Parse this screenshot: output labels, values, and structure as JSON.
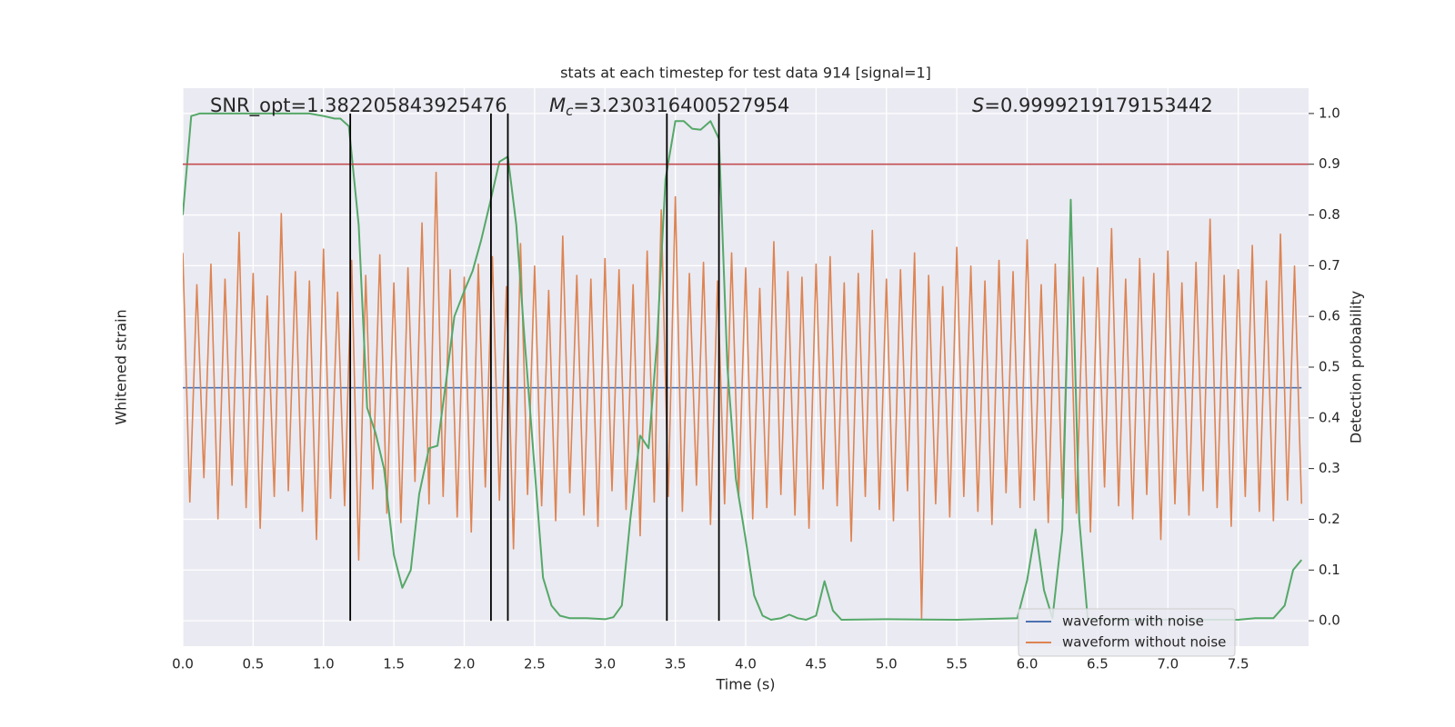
{
  "chart_data": {
    "type": "line",
    "title": "stats at each timestep for test data 914 [signal=1]",
    "xlabel": "Time (s)",
    "ylabel": "Whitened strain",
    "y2label": "Detection probability",
    "xlim": [
      0,
      8
    ],
    "xticks": [
      {
        "value": 0,
        "label": "0.0"
      },
      0.5,
      {
        "value": 1,
        "label": "1.0"
      },
      1.5,
      {
        "value": 2,
        "label": "2.0"
      },
      2.5,
      {
        "value": 3,
        "label": "3.0"
      },
      3.5,
      {
        "value": 4,
        "label": "4.0"
      },
      4.5,
      {
        "value": 5,
        "label": "5.0"
      },
      5.5,
      {
        "value": 6,
        "label": "6.0"
      },
      6.5,
      {
        "value": 7,
        "label": "7.0"
      },
      7.5
    ],
    "ylim": [
      -1.38,
      1.6
    ],
    "y2lim": [
      -0.05,
      1.05
    ],
    "y2ticks": [
      {
        "value": 0,
        "label": "0.0"
      },
      0.1,
      0.2,
      0.3,
      0.4,
      0.5,
      0.6,
      0.7,
      0.8,
      0.9,
      {
        "value": 1,
        "label": "1.0"
      }
    ],
    "grid": true,
    "legend": "lower right",
    "series": [
      {
        "name": "waveform with noise",
        "color": "#4c72b0",
        "x": [
          0,
          7.95
        ],
        "values": [
          0,
          0
        ]
      },
      {
        "name": "waveform without noise",
        "color": "#dd8452",
        "x": [
          0,
          0.05,
          0.1,
          0.15,
          0.2,
          0.25,
          0.3,
          0.35,
          0.4,
          0.45,
          0.5,
          0.55,
          0.6,
          0.65,
          0.7,
          0.75,
          0.8,
          0.85,
          0.9,
          0.95,
          1,
          1.05,
          1.1,
          1.15,
          1.2,
          1.25,
          1.3,
          1.35,
          1.4,
          1.45,
          1.5,
          1.55,
          1.6,
          1.65,
          1.7,
          1.75,
          1.8,
          1.85,
          1.9,
          1.95,
          2,
          2.05,
          2.1,
          2.15,
          2.2,
          2.25,
          2.3,
          2.35,
          2.4,
          2.45,
          2.5,
          2.55,
          2.6,
          2.65,
          2.7,
          2.75,
          2.8,
          2.85,
          2.9,
          2.95,
          3,
          3.05,
          3.1,
          3.15,
          3.2,
          3.25,
          3.3,
          3.35,
          3.4,
          3.45,
          3.5,
          3.55,
          3.6,
          3.65,
          3.7,
          3.75,
          3.8,
          3.85,
          3.9,
          3.95,
          4,
          4.05,
          4.1,
          4.15,
          4.2,
          4.25,
          4.3,
          4.35,
          4.4,
          4.45,
          4.5,
          4.55,
          4.6,
          4.65,
          4.7,
          4.75,
          4.8,
          4.85,
          4.9,
          4.95,
          5,
          5.05,
          5.1,
          5.15,
          5.2,
          5.25,
          5.3,
          5.35,
          5.4,
          5.45,
          5.5,
          5.55,
          5.6,
          5.65,
          5.7,
          5.75,
          5.8,
          5.85,
          5.9,
          5.95,
          6,
          6.05,
          6.1,
          6.15,
          6.2,
          6.25,
          6.3,
          6.35,
          6.4,
          6.45,
          6.5,
          6.55,
          6.6,
          6.65,
          6.7,
          6.75,
          6.8,
          6.85,
          6.9,
          6.95,
          7,
          7.05,
          7.1,
          7.15,
          7.2,
          7.25,
          7.3,
          7.35,
          7.4,
          7.45,
          7.5,
          7.55,
          7.6,
          7.65,
          7.7,
          7.75,
          7.8,
          7.85,
          7.9,
          7.95
        ],
        "values": [
          0.72,
          -0.61,
          0.55,
          -0.48,
          0.66,
          -0.7,
          0.58,
          -0.52,
          0.83,
          -0.64,
          0.61,
          -0.75,
          0.49,
          -0.58,
          0.93,
          -0.55,
          0.62,
          -0.66,
          0.57,
          -0.81,
          0.74,
          -0.59,
          0.51,
          -0.63,
          0.68,
          -0.92,
          0.6,
          -0.54,
          0.71,
          -0.67,
          0.56,
          -0.72,
          0.64,
          -0.5,
          0.88,
          -0.62,
          1.15,
          -0.58,
          0.63,
          -0.69,
          0.59,
          -0.77,
          0.66,
          -0.53,
          0.7,
          -0.6,
          0.54,
          -0.86,
          0.77,
          -0.57,
          0.65,
          -0.63,
          0.52,
          -0.71,
          0.81,
          -0.56,
          0.6,
          -0.68,
          0.58,
          -0.74,
          0.69,
          -0.55,
          0.63,
          -0.65,
          0.55,
          -0.79,
          0.73,
          -0.61,
          0.95,
          -0.58,
          1.02,
          -0.66,
          0.61,
          -0.52,
          0.67,
          -0.73,
          0.57,
          -0.62,
          0.72,
          -0.59,
          0.64,
          -0.7,
          0.53,
          -0.64,
          0.78,
          -0.57,
          0.62,
          -0.68,
          0.59,
          -0.75,
          0.66,
          -0.54,
          0.7,
          -0.63,
          0.56,
          -0.82,
          0.61,
          -0.58,
          0.84,
          -0.65,
          0.58,
          -0.71,
          0.63,
          -0.55,
          0.72,
          -1.23,
          0.6,
          -0.62,
          0.54,
          -0.69,
          0.75,
          -0.58,
          0.65,
          -0.66,
          0.57,
          -0.73,
          0.68,
          -0.56,
          0.62,
          -0.64,
          0.79,
          -0.6,
          0.55,
          -0.72,
          0.66,
          -0.59,
          0.71,
          -0.67,
          0.59,
          -0.77,
          0.64,
          -0.53,
          0.85,
          -0.63,
          0.58,
          -0.7,
          0.69,
          -0.57,
          0.61,
          -0.81,
          0.73,
          -0.62,
          0.56,
          -0.68,
          0.67,
          -0.55,
          0.9,
          -0.64,
          0.6,
          -0.74,
          0.63,
          -0.58,
          0.76,
          -0.66,
          0.57,
          -0.71,
          0.82,
          -0.6,
          0.65,
          -0.62
        ]
      },
      {
        "color": "#55a868",
        "axis": "y2",
        "x": [
          0,
          0.06,
          0.12,
          0.5,
          0.9,
          1,
          1.08,
          1.12,
          1.18,
          1.25,
          1.31,
          1.37,
          1.43,
          1.5,
          1.56,
          1.62,
          1.68,
          1.75,
          1.81,
          1.87,
          1.93,
          2,
          2.06,
          2.12,
          2.18,
          2.25,
          2.31,
          2.37,
          2.43,
          2.5,
          2.56,
          2.62,
          2.68,
          2.75,
          2.87,
          3,
          3.06,
          3.12,
          3.18,
          3.25,
          3.31,
          3.37,
          3.43,
          3.5,
          3.56,
          3.62,
          3.68,
          3.75,
          3.81,
          3.87,
          3.93,
          4,
          4.06,
          4.12,
          4.18,
          4.25,
          4.31,
          4.37,
          4.43,
          4.5,
          4.56,
          4.62,
          4.68,
          5,
          5.5,
          5.93,
          6,
          6.06,
          6.12,
          6.18,
          6.25,
          6.31,
          6.37,
          6.43,
          6.5,
          7.5,
          7.62,
          7.75,
          7.83,
          7.89,
          7.95
        ],
        "values": [
          0.8,
          0.995,
          1,
          1,
          1,
          0.995,
          0.99,
          0.99,
          0.975,
          0.78,
          0.42,
          0.37,
          0.3,
          0.13,
          0.065,
          0.1,
          0.25,
          0.34,
          0.345,
          0.47,
          0.6,
          0.65,
          0.69,
          0.75,
          0.82,
          0.905,
          0.915,
          0.78,
          0.55,
          0.3,
          0.085,
          0.03,
          0.01,
          0.005,
          0.005,
          0.003,
          0.007,
          0.03,
          0.2,
          0.365,
          0.34,
          0.55,
          0.87,
          0.985,
          0.985,
          0.97,
          0.968,
          0.985,
          0.95,
          0.5,
          0.28,
          0.16,
          0.05,
          0.01,
          0.002,
          0.005,
          0.012,
          0.005,
          0.002,
          0.01,
          0.078,
          0.02,
          0.002,
          0.003,
          0.002,
          0.005,
          0.08,
          0.18,
          0.06,
          0.005,
          0.18,
          0.83,
          0.2,
          0.005,
          0.002,
          0.002,
          0.005,
          0.005,
          0.03,
          0.1,
          0.12
        ]
      }
    ],
    "hlines": [
      {
        "value": 0.9,
        "color": "#c44e52",
        "axis": "y2"
      }
    ],
    "vlines": {
      "x": [
        1.19,
        2.19,
        2.31,
        3.44,
        3.81
      ],
      "ymin": 0,
      "ymax": 1,
      "axis": "y2",
      "color": "#000000"
    },
    "annotations": [
      {
        "text": "SNR_opt=1.382205843925476"
      },
      {
        "italic": "M",
        "sub": "c",
        "text": "=3.230316400527954"
      },
      {
        "italic": "S",
        "text": "=0.9999219179153442"
      }
    ]
  }
}
